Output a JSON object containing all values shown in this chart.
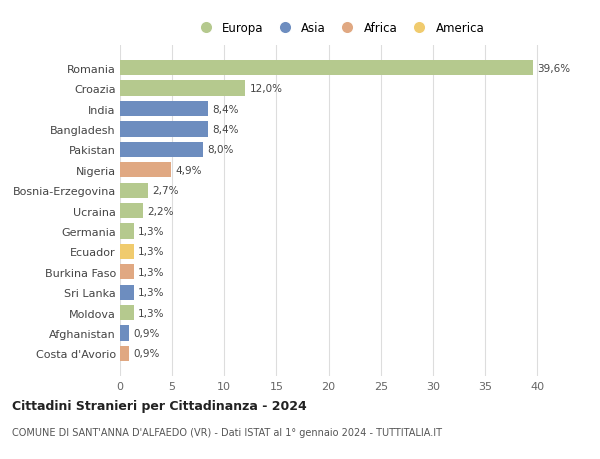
{
  "countries": [
    "Romania",
    "Croazia",
    "India",
    "Bangladesh",
    "Pakistan",
    "Nigeria",
    "Bosnia-Erzegovina",
    "Ucraina",
    "Germania",
    "Ecuador",
    "Burkina Faso",
    "Sri Lanka",
    "Moldova",
    "Afghanistan",
    "Costa d'Avorio"
  ],
  "values": [
    39.6,
    12.0,
    8.4,
    8.4,
    8.0,
    4.9,
    2.7,
    2.2,
    1.3,
    1.3,
    1.3,
    1.3,
    1.3,
    0.9,
    0.9
  ],
  "labels": [
    "39,6%",
    "12,0%",
    "8,4%",
    "8,4%",
    "8,0%",
    "4,9%",
    "2,7%",
    "2,2%",
    "1,3%",
    "1,3%",
    "1,3%",
    "1,3%",
    "1,3%",
    "0,9%",
    "0,9%"
  ],
  "continents": [
    "Europa",
    "Europa",
    "Asia",
    "Asia",
    "Asia",
    "Africa",
    "Europa",
    "Europa",
    "Europa",
    "America",
    "Africa",
    "Asia",
    "Europa",
    "Asia",
    "Africa"
  ],
  "colors": {
    "Europa": "#b5c98e",
    "Asia": "#6d8dbf",
    "Africa": "#e0a882",
    "America": "#f0cb6e"
  },
  "legend_labels": [
    "Europa",
    "Asia",
    "Africa",
    "America"
  ],
  "title1": "Cittadini Stranieri per Cittadinanza - 2024",
  "title2": "COMUNE DI SANT'ANNA D'ALFAEDO (VR) - Dati ISTAT al 1° gennaio 2024 - TUTTITALIA.IT",
  "xlim": [
    0,
    42
  ],
  "xticks": [
    0,
    5,
    10,
    15,
    20,
    25,
    30,
    35,
    40
  ],
  "background_color": "#ffffff",
  "grid_color": "#dddddd"
}
